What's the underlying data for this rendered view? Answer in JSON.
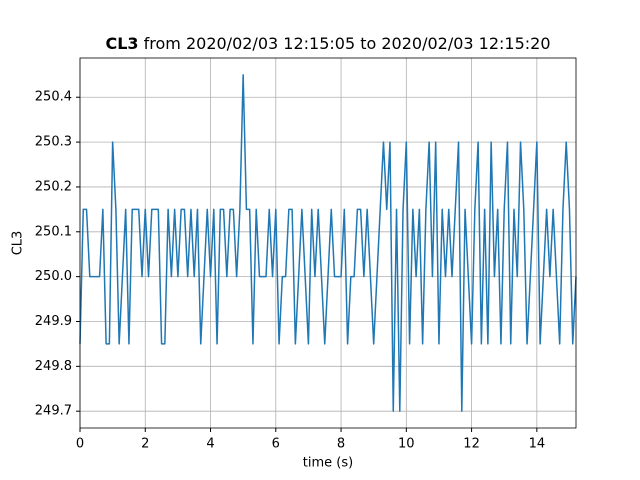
{
  "chart_data": {
    "type": "line",
    "title_bold": "CL3",
    "title": "from 2020/02/03 12:15:05 to 2020/02/03 12:15:20",
    "x_label": "time (s)",
    "y_label": "CL3",
    "xlim": [
      0,
      15.2
    ],
    "ylim": [
      249.6625,
      250.4875
    ],
    "xticks": [
      0,
      2,
      4,
      6,
      8,
      10,
      12,
      14
    ],
    "yticks": [
      249.7,
      249.8,
      249.9,
      {
        "value": 250,
        "label": "250.0"
      },
      250.1,
      250.2,
      250.3,
      250.4
    ],
    "grid": true,
    "x": [
      0,
      0.1,
      0.2,
      0.3,
      0.4,
      0.5,
      0.6,
      0.7,
      0.8,
      0.9,
      1,
      1.1,
      1.2,
      1.3,
      1.4,
      1.5,
      1.6,
      1.7,
      1.8,
      1.9,
      2,
      2.1,
      2.2,
      2.3,
      2.4,
      2.5,
      2.6,
      2.7,
      2.8,
      2.9,
      3,
      3.1,
      3.2,
      3.3,
      3.4,
      3.5,
      3.6,
      3.7,
      3.8,
      3.9,
      4,
      4.1,
      4.2,
      4.3,
      4.4,
      4.5,
      4.6,
      4.7,
      4.8,
      4.9,
      5,
      5.1,
      5.2,
      5.3,
      5.4,
      5.5,
      5.6,
      5.7,
      5.8,
      5.9,
      6,
      6.1,
      6.2,
      6.3,
      6.4,
      6.5,
      6.6,
      6.7,
      6.8,
      6.9,
      7,
      7.1,
      7.2,
      7.3,
      7.4,
      7.5,
      7.6,
      7.7,
      7.8,
      7.9,
      8,
      8.1,
      8.2,
      8.3,
      8.4,
      8.5,
      8.6,
      8.7,
      8.8,
      8.9,
      9,
      9.1,
      9.2,
      9.3,
      9.4,
      9.5,
      9.6,
      9.7,
      9.8,
      9.9,
      10,
      10.1,
      10.2,
      10.3,
      10.4,
      10.5,
      10.6,
      10.7,
      10.8,
      10.9,
      11,
      11.1,
      11.2,
      11.3,
      11.4,
      11.5,
      11.6,
      11.7,
      11.8,
      11.9,
      12,
      12.1,
      12.2,
      12.3,
      12.4,
      12.5,
      12.6,
      12.7,
      12.8,
      12.9,
      13,
      13.1,
      13.2,
      13.3,
      13.4,
      13.5,
      13.6,
      13.7,
      13.8,
      13.9,
      14,
      14.1,
      14.2,
      14.3,
      14.4,
      14.5,
      14.6,
      14.7,
      14.8,
      14.9,
      15,
      15.1,
      15.2
    ],
    "series": [
      {
        "name": "CL3",
        "color": "#1f77b4",
        "values": [
          249.85,
          250.15,
          250.15,
          250,
          250,
          250,
          250,
          250.15,
          249.85,
          249.85,
          250.3,
          250.15,
          249.85,
          250,
          250.15,
          249.85,
          250.15,
          250.15,
          250.15,
          250,
          250.15,
          250,
          250.15,
          250.15,
          250.15,
          249.85,
          249.85,
          250.15,
          250,
          250.15,
          250,
          250.15,
          250.15,
          250,
          250.15,
          250,
          250.15,
          249.85,
          250,
          250.15,
          250,
          250.15,
          249.85,
          250.15,
          250.15,
          250,
          250.15,
          250.15,
          250,
          250.15,
          250.45,
          250.15,
          250.15,
          249.85,
          250.15,
          250,
          250,
          250,
          250.15,
          250,
          250.15,
          249.85,
          250,
          250,
          250.15,
          250.15,
          249.85,
          250,
          250.15,
          250,
          249.85,
          250.15,
          250,
          250.15,
          250,
          249.85,
          250,
          250.15,
          250,
          250,
          250,
          250.15,
          249.85,
          250,
          250,
          250.15,
          250.15,
          250,
          250.15,
          250,
          249.85,
          250,
          250.15,
          250.3,
          250.15,
          250.3,
          249.7,
          250.15,
          249.7,
          250.15,
          250.3,
          249.85,
          250.15,
          250,
          250.15,
          249.85,
          250.15,
          250.3,
          250,
          250.3,
          249.85,
          250.15,
          250,
          250.15,
          250,
          250.15,
          250.3,
          249.7,
          250.15,
          250,
          249.85,
          250.15,
          250.3,
          249.85,
          250.15,
          249.85,
          250.3,
          250,
          250.15,
          249.85,
          250.15,
          250.3,
          249.85,
          250.15,
          250,
          250.3,
          250.15,
          249.85,
          250,
          250.15,
          250.3,
          249.85,
          250,
          250.15,
          250,
          250.15,
          250,
          249.85,
          250.15,
          250.3,
          250.15,
          249.85,
          250
        ]
      }
    ]
  }
}
